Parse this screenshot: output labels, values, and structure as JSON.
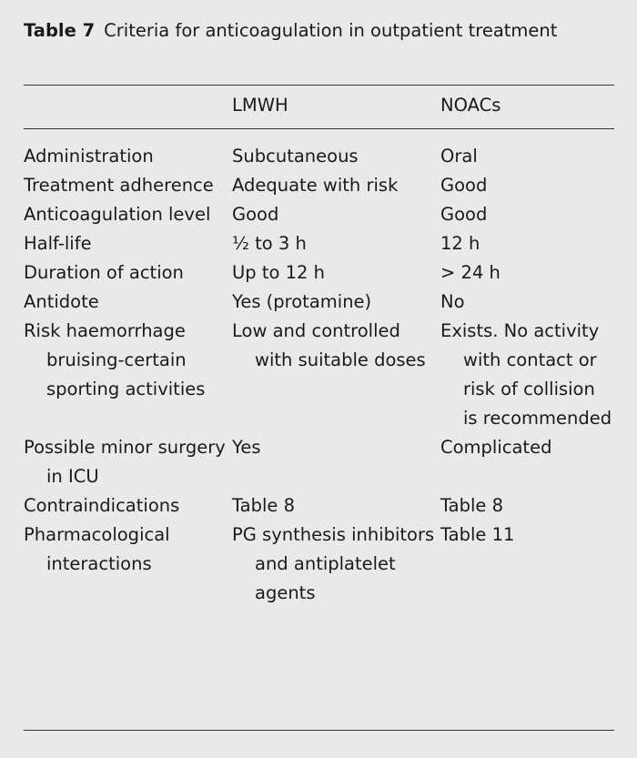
{
  "caption": {
    "label": "Table 7",
    "title": "Criteria for anticoagulation in outpatient treatment"
  },
  "columns": [
    "",
    "LMWH",
    "NOACs"
  ],
  "rows": [
    [
      "Administration",
      "Subcutaneous",
      "Oral"
    ],
    [
      "Treatment adherence",
      "Adequate with risk",
      "Good"
    ],
    [
      "Anticoagulation level",
      "Good",
      "Good"
    ],
    [
      "Half-life",
      "½ to 3 h",
      "12 h"
    ],
    [
      "Duration of action",
      "Up to 12 h",
      "> 24 h"
    ],
    [
      "Antidote",
      "Yes (protamine)",
      "No"
    ],
    [
      "Risk haemorrhage bruising-certain sporting activities",
      "Low and controlled with suitable doses",
      "Exists. No activity with contact or risk of collision is recommended"
    ],
    [
      "Possible minor surgery in ICU",
      "Yes",
      "Complicated"
    ],
    [
      "Contraindications",
      "Table 8",
      "Table 8"
    ],
    [
      "Pharmacological interactions",
      "PG synthesis inhibitors and antiplatelet agents",
      "Table 11"
    ]
  ]
}
